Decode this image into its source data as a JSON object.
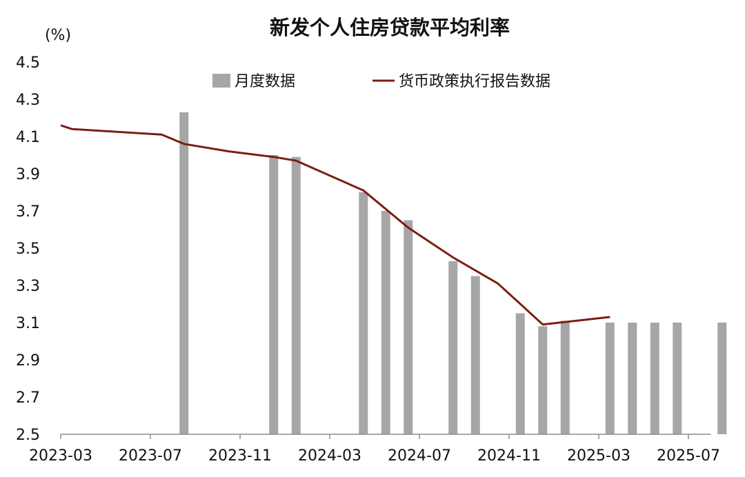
{
  "chart_data": {
    "type": "bar",
    "title": "新发个人住房贷款平均利率",
    "y_unit": "(%)",
    "ylim": [
      2.5,
      4.5
    ],
    "yticks": [
      "2.5",
      "2.7",
      "2.9",
      "3.1",
      "3.3",
      "3.5",
      "3.7",
      "3.9",
      "4.1",
      "4.3",
      "4.5"
    ],
    "x_ticks": [
      "2023-03",
      "2023-07",
      "2023-11",
      "2024-03",
      "2024-07",
      "2024-11",
      "2025-03",
      "2025-07"
    ],
    "legend_position": "top",
    "grid": false,
    "series": [
      {
        "name": "月度数据",
        "type": "bar",
        "color": "#a6a6a6",
        "points": [
          {
            "x": "2023-08",
            "y": 4.23
          },
          {
            "x": "2023-12",
            "y": 4.0
          },
          {
            "x": "2024-01",
            "y": 3.99
          },
          {
            "x": "2024-04",
            "y": 3.8
          },
          {
            "x": "2024-05",
            "y": 3.7
          },
          {
            "x": "2024-06",
            "y": 3.65
          },
          {
            "x": "2024-08",
            "y": 3.43
          },
          {
            "x": "2024-09",
            "y": 3.35
          },
          {
            "x": "2024-11",
            "y": 3.15
          },
          {
            "x": "2024-12",
            "y": 3.08
          },
          {
            "x": "2025-01",
            "y": 3.11
          },
          {
            "x": "2025-03",
            "y": 3.1
          },
          {
            "x": "2025-04",
            "y": 3.1
          },
          {
            "x": "2025-05",
            "y": 3.1
          },
          {
            "x": "2025-06",
            "y": 3.1
          },
          {
            "x": "2025-08",
            "y": 3.1
          }
        ]
      },
      {
        "name": "货币政策执行报告数据",
        "type": "line",
        "color": "#7b1e12",
        "points": [
          {
            "x": "2023-03",
            "y": 4.16
          },
          {
            "x": "2023-03",
            "y": 4.14
          },
          {
            "x": "2023-07",
            "y": 4.11
          },
          {
            "x": "2023-08",
            "y": 4.06
          },
          {
            "x": "2023-10",
            "y": 4.02
          },
          {
            "x": "2023-12",
            "y": 3.99
          },
          {
            "x": "2024-01",
            "y": 3.97
          },
          {
            "x": "2024-04",
            "y": 3.81
          },
          {
            "x": "2024-05",
            "y": 3.71
          },
          {
            "x": "2024-06",
            "y": 3.61
          },
          {
            "x": "2024-08",
            "y": 3.45
          },
          {
            "x": "2024-10",
            "y": 3.31
          },
          {
            "x": "2024-12",
            "y": 3.09
          },
          {
            "x": "2025-03",
            "y": 3.13
          }
        ]
      }
    ]
  }
}
